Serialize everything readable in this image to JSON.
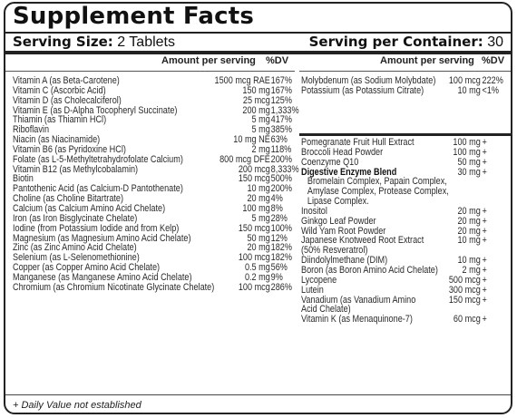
{
  "title": "Supplement Facts",
  "serving": {
    "size_label": "Serving Size:",
    "size_value": "2 Tablets",
    "container_label": "Serving per Container:",
    "container_value": "30"
  },
  "headers": {
    "amount": "Amount per serving",
    "dv": "%DV"
  },
  "left_rows": [
    {
      "name": "Vitamin A (as Beta-Carotene)",
      "amount": "1500 mcg RAE",
      "dv": "167%"
    },
    {
      "name": "Vitamin C (Ascorbic Acid)",
      "amount": "150 mg",
      "dv": "167%"
    },
    {
      "name": "Vitamin D (as Cholecalciferol)",
      "amount": "25 mcg",
      "dv": "125%"
    },
    {
      "name": "Vitamin E (as D-Alpha Tocopheryl Succinate)",
      "amount": "200 mg",
      "dv": "1,333%"
    },
    {
      "name": "Thiamin (as Thiamin HCl)",
      "amount": "5 mg",
      "dv": "417%"
    },
    {
      "name": "Riboflavin",
      "amount": "5 mg",
      "dv": "385%"
    },
    {
      "name": "Niacin (as Niacinamide)",
      "amount": "10 mg NE",
      "dv": "63%"
    },
    {
      "name": "Vitamin B6 (as Pyridoxine HCl)",
      "amount": "2 mg",
      "dv": "118%"
    },
    {
      "name": "Folate (as L-5-Methyltetrahydrofolate Calcium)",
      "amount": "800 mcg DFE",
      "dv": "200%"
    },
    {
      "name": "Vitamin B12 (as Methylcobalamin)",
      "amount": "200 mcg",
      "dv": "8,333%"
    },
    {
      "name": "Biotin",
      "amount": "150 mcg",
      "dv": "500%"
    },
    {
      "name": "Pantothenic Acid (as Calcium-D Pantothenate)",
      "amount": "10 mg",
      "dv": "200%"
    },
    {
      "name": "Choline (as Choline Bitartrate)",
      "amount": "20 mg",
      "dv": "4%"
    },
    {
      "name": "Calcium (as Calcium Amino Acid Chelate)",
      "amount": "100 mg",
      "dv": "8%"
    },
    {
      "name": "Iron (as Iron Bisglycinate Chelate)",
      "amount": "5 mg",
      "dv": "28%"
    },
    {
      "name": "Iodine (from Potassium Iodide and from Kelp)",
      "amount": "150 mcg",
      "dv": "100%"
    },
    {
      "name": "Magnesium (as Magnesium Amino Acid Chelate)",
      "amount": "50 mg",
      "dv": "12%"
    },
    {
      "name": "Zinc (as Zinc Amino Acid Chelate)",
      "amount": "20 mg",
      "dv": "182%"
    },
    {
      "name": "Selenium (as L-Selenomethionine)",
      "amount": "100 mcg",
      "dv": "182%"
    },
    {
      "name": "Copper (as Copper Amino Acid Chelate)",
      "amount": "0.5 mg",
      "dv": "56%"
    },
    {
      "name": "Manganese (as Manganese Amino Acid Chelate)",
      "amount": "0.2 mg",
      "dv": "9%"
    },
    {
      "name": "Chromium (as Chromium Nicotinate Glycinate Chelate)",
      "amount": "100 mcg",
      "dv": "286%"
    }
  ],
  "right_top_rows": [
    {
      "name": "Molybdenum (as Sodium Molybdate)",
      "amount": "100 mcg",
      "dv": "222%"
    },
    {
      "name": "Potassium (as Potassium Citrate)",
      "amount": "10 mg",
      "dv": "<1%"
    }
  ],
  "right_rows": [
    {
      "name": "Pomegranate Fruit Hull Extract",
      "amount": "100 mg",
      "dv": "+"
    },
    {
      "name": "Broccoli Head Powder",
      "amount": "100 mg",
      "dv": "+"
    },
    {
      "name": "Coenzyme Q10",
      "amount": "50 mg",
      "dv": "+"
    },
    {
      "name": "Digestive Enzyme Blend",
      "amount": "30 mg",
      "dv": "+",
      "bold": true
    },
    {
      "name": "Bromelain Complex, Papain Complex,",
      "amount": "",
      "dv": "",
      "cont": true
    },
    {
      "name": "Amylase Complex, Protease Complex,",
      "amount": "",
      "dv": "",
      "cont": true
    },
    {
      "name": "Lipase Complex.",
      "amount": "",
      "dv": "",
      "cont": true
    },
    {
      "name": "Inositol",
      "amount": "20 mg",
      "dv": "+"
    },
    {
      "name": "Ginkgo Leaf Powder",
      "amount": "20 mg",
      "dv": "+"
    },
    {
      "name": "Wild Yam Root Powder",
      "amount": "20 mg",
      "dv": "+"
    },
    {
      "name": "Japanese Knotweed Root Extract",
      "amount": "10 mg",
      "dv": "+"
    },
    {
      "name": "(50% Resveratrol)",
      "amount": "",
      "dv": ""
    },
    {
      "name": "Diindolylmethane (DIM)",
      "amount": "10 mg",
      "dv": "+"
    },
    {
      "name": "Boron (as Boron Amino Acid Chelate)",
      "amount": "2 mg",
      "dv": "+"
    },
    {
      "name": "Lycopene",
      "amount": "500 mcg",
      "dv": "+"
    },
    {
      "name": "Lutein",
      "amount": "300 mcg",
      "dv": "+"
    },
    {
      "name": "Vanadium (as Vanadium Amino",
      "amount": "150 mcg",
      "dv": "+"
    },
    {
      "name": "Acid Chelate)",
      "amount": "",
      "dv": ""
    },
    {
      "name": "Vitamin K (as Menaquinone-7)",
      "amount": "60 mcg",
      "dv": "+"
    }
  ],
  "footer": "+ Daily Value not established"
}
